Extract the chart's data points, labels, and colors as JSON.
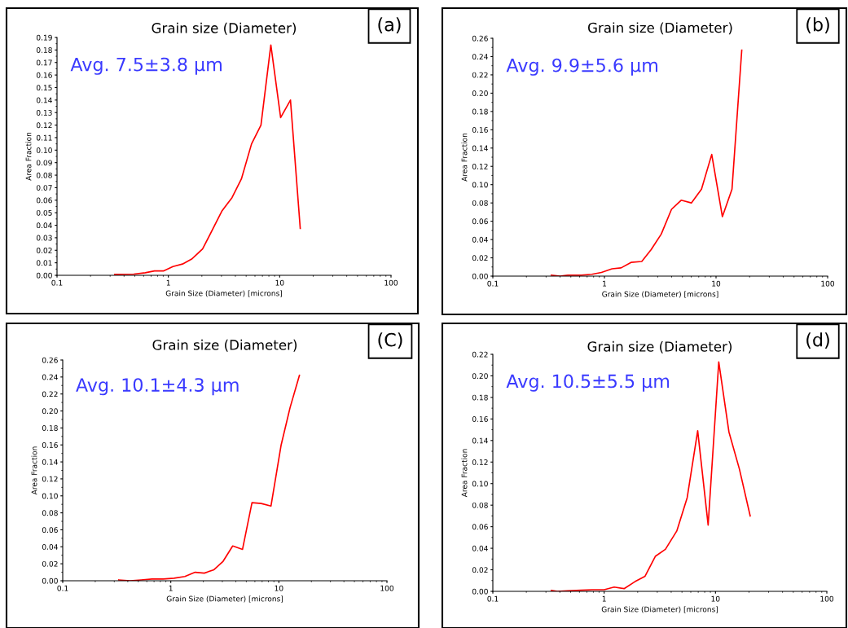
{
  "chart_data": [
    {
      "type": "line",
      "title": "Grain size (Diameter)",
      "xlabel": "Grain Size (Diameter) [microns]",
      "ylabel": "Area Fraction",
      "annotations": [
        "(a)",
        "Avg. 7.5±3.8 µm"
      ],
      "log": "x",
      "grid": false,
      "xlim": [
        0.1,
        100
      ],
      "xticks": [
        0.1,
        1,
        10,
        100
      ],
      "ylim": [
        0,
        0.19
      ],
      "yticks": [
        {
          "value": 0,
          "label": "0.00"
        },
        {
          "value": 0.01,
          "label": "0.01"
        },
        {
          "value": 0.02,
          "label": "0.02"
        },
        {
          "value": 0.03,
          "label": "0.03"
        },
        {
          "value": 0.04,
          "label": "0.04"
        },
        {
          "value": 0.05,
          "label": "0.05"
        },
        {
          "value": 0.06,
          "label": "0.06"
        },
        {
          "value": 0.07,
          "label": "0.07"
        },
        {
          "value": 0.08,
          "label": "0.08"
        },
        {
          "value": 0.09,
          "label": "0.09"
        },
        {
          "value": 0.1,
          "label": "0.10"
        },
        {
          "value": 0.11,
          "label": "0.11"
        },
        {
          "value": 0.12,
          "label": "0.12"
        },
        {
          "value": 0.13,
          "label": "0.13"
        },
        {
          "value": 0.14,
          "label": "0.14"
        },
        {
          "value": 0.15,
          "label": "0.15"
        },
        {
          "value": 0.16,
          "label": "0.16"
        },
        {
          "value": 0.17,
          "label": "0.17"
        },
        {
          "value": 0.18,
          "label": "0.18"
        },
        {
          "value": 0.19,
          "label": "0.19"
        }
      ],
      "series": [
        {
          "color": "#ff0000",
          "x": [
            0.33,
            0.49,
            0.62,
            0.75,
            0.91,
            1.1,
            1.34,
            1.62,
            2.03,
            3.04,
            3.73,
            4.53,
            5.59,
            6.79,
            8.33,
            10.2,
            12.5,
            15.3
          ],
          "values": [
            0.0007,
            0.001,
            0.002,
            0.0035,
            0.0035,
            0.007,
            0.009,
            0.013,
            0.021,
            0.0516,
            0.062,
            0.077,
            0.105,
            0.12,
            0.184,
            0.126,
            0.14,
            0.0375
          ]
        }
      ]
    },
    {
      "type": "line",
      "title": "Grain size (Diameter)",
      "xlabel": "Grain Size (Diameter) [microns]",
      "ylabel": "Area Fraction",
      "annotations": [
        "(b)",
        "Avg. 9.9±5.6 µm"
      ],
      "log": "x",
      "grid": false,
      "xlim": [
        0.1,
        100
      ],
      "xticks": [
        0.1,
        1,
        10,
        100
      ],
      "ylim": [
        0,
        0.26
      ],
      "yticks": [
        {
          "value": 0,
          "label": "0.00"
        },
        {
          "value": 0.02,
          "label": "0.02"
        },
        {
          "value": 0.04,
          "label": "0.04"
        },
        {
          "value": 0.06,
          "label": "0.06"
        },
        {
          "value": 0.08,
          "label": "0.08"
        },
        {
          "value": 0.1,
          "label": "0.10"
        },
        {
          "value": 0.12,
          "label": "0.12"
        },
        {
          "value": 0.14,
          "label": "0.14"
        },
        {
          "value": 0.16,
          "label": "0.16"
        },
        {
          "value": 0.18,
          "label": "0.18"
        },
        {
          "value": 0.2,
          "label": "0.20"
        },
        {
          "value": 0.22,
          "label": "0.22"
        },
        {
          "value": 0.24,
          "label": "0.24"
        },
        {
          "value": 0.26,
          "label": "0.26"
        }
      ],
      "series": [
        {
          "color": "#ff0000",
          "x": [
            0.334,
            0.4,
            0.47,
            0.62,
            0.77,
            0.94,
            1.17,
            1.41,
            1.73,
            2.16,
            2.62,
            3.23,
            3.99,
            4.87,
            6.01,
            7.41,
            9.15,
            11.4,
            13.9,
            17.0
          ],
          "values": [
            0.001,
            0.0,
            0.001,
            0.001,
            0.002,
            0.004,
            0.008,
            0.009,
            0.015,
            0.016,
            0.029,
            0.046,
            0.073,
            0.083,
            0.08,
            0.095,
            0.133,
            0.065,
            0.095,
            0.247
          ]
        }
      ]
    },
    {
      "type": "line",
      "title": "Grain size (Diameter)",
      "xlabel": "Grain Size (Diameter) [microns]",
      "ylabel": "Area Fraction",
      "annotations": [
        "(C)",
        "Avg. 10.1±4.3 µm"
      ],
      "log": "x",
      "grid": false,
      "xlim": [
        0.1,
        100
      ],
      "xticks": [
        0.1,
        1,
        10,
        100
      ],
      "ylim": [
        0,
        0.26
      ],
      "yticks": [
        {
          "value": 0,
          "label": "0.00"
        },
        {
          "value": 0.02,
          "label": "0.02"
        },
        {
          "value": 0.04,
          "label": "0.04"
        },
        {
          "value": 0.06,
          "label": "0.06"
        },
        {
          "value": 0.08,
          "label": "0.08"
        },
        {
          "value": 0.1,
          "label": "0.10"
        },
        {
          "value": 0.12,
          "label": "0.12"
        },
        {
          "value": 0.14,
          "label": "0.14"
        },
        {
          "value": 0.16,
          "label": "0.16"
        },
        {
          "value": 0.18,
          "label": "0.18"
        },
        {
          "value": 0.2,
          "label": "0.20"
        },
        {
          "value": 0.22,
          "label": "0.22"
        },
        {
          "value": 0.24,
          "label": "0.24"
        },
        {
          "value": 0.26,
          "label": "0.26"
        }
      ],
      "series": [
        {
          "color": "#ff0000",
          "x": [
            0.33,
            0.42,
            0.53,
            0.67,
            0.85,
            1.07,
            1.35,
            1.68,
            2.04,
            2.51,
            3.05,
            3.74,
            4.61,
            5.64,
            6.86,
            8.45,
            10.5,
            12.7,
            15.5
          ],
          "values": [
            0.001,
            0.0,
            0.001,
            0.002,
            0.002,
            0.003,
            0.005,
            0.01,
            0.009,
            0.013,
            0.023,
            0.041,
            0.037,
            0.092,
            0.091,
            0.088,
            0.16,
            0.204,
            0.242
          ]
        }
      ]
    },
    {
      "type": "line",
      "title": "Grain size (Diameter)",
      "xlabel": "Grain Size (Diameter) [microns]",
      "ylabel": "Area Fraction",
      "annotations": [
        "(d)",
        "Avg. 10.5±5.5 µm"
      ],
      "log": "x",
      "grid": false,
      "xlim": [
        0.1,
        100
      ],
      "xticks": [
        0.1,
        1,
        10,
        100
      ],
      "ylim": [
        0,
        0.22
      ],
      "yticks": [
        {
          "value": 0,
          "label": "0.00"
        },
        {
          "value": 0.02,
          "label": "0.02"
        },
        {
          "value": 0.04,
          "label": "0.04"
        },
        {
          "value": 0.06,
          "label": "0.06"
        },
        {
          "value": 0.08,
          "label": "0.08"
        },
        {
          "value": 0.1,
          "label": "0.10"
        },
        {
          "value": 0.12,
          "label": "0.12"
        },
        {
          "value": 0.14,
          "label": "0.14"
        },
        {
          "value": 0.16,
          "label": "0.16"
        },
        {
          "value": 0.18,
          "label": "0.18"
        },
        {
          "value": 0.2,
          "label": "0.20"
        },
        {
          "value": 0.22,
          "label": "0.22"
        }
      ],
      "series": [
        {
          "color": "#ff0000",
          "x": [
            0.335,
            0.38,
            0.47,
            0.62,
            0.78,
            1.0,
            1.23,
            1.51,
            1.89,
            2.33,
            2.88,
            3.55,
            4.49,
            5.57,
            6.92,
            8.59,
            10.7,
            13.2,
            16.4,
            20.5
          ],
          "values": [
            0.0008,
            0.0,
            0.0005,
            0.001,
            0.0015,
            0.0015,
            0.004,
            0.0025,
            0.009,
            0.014,
            0.0325,
            0.039,
            0.056,
            0.087,
            0.149,
            0.0615,
            0.213,
            0.148,
            0.1135,
            0.07
          ]
        }
      ]
    }
  ]
}
